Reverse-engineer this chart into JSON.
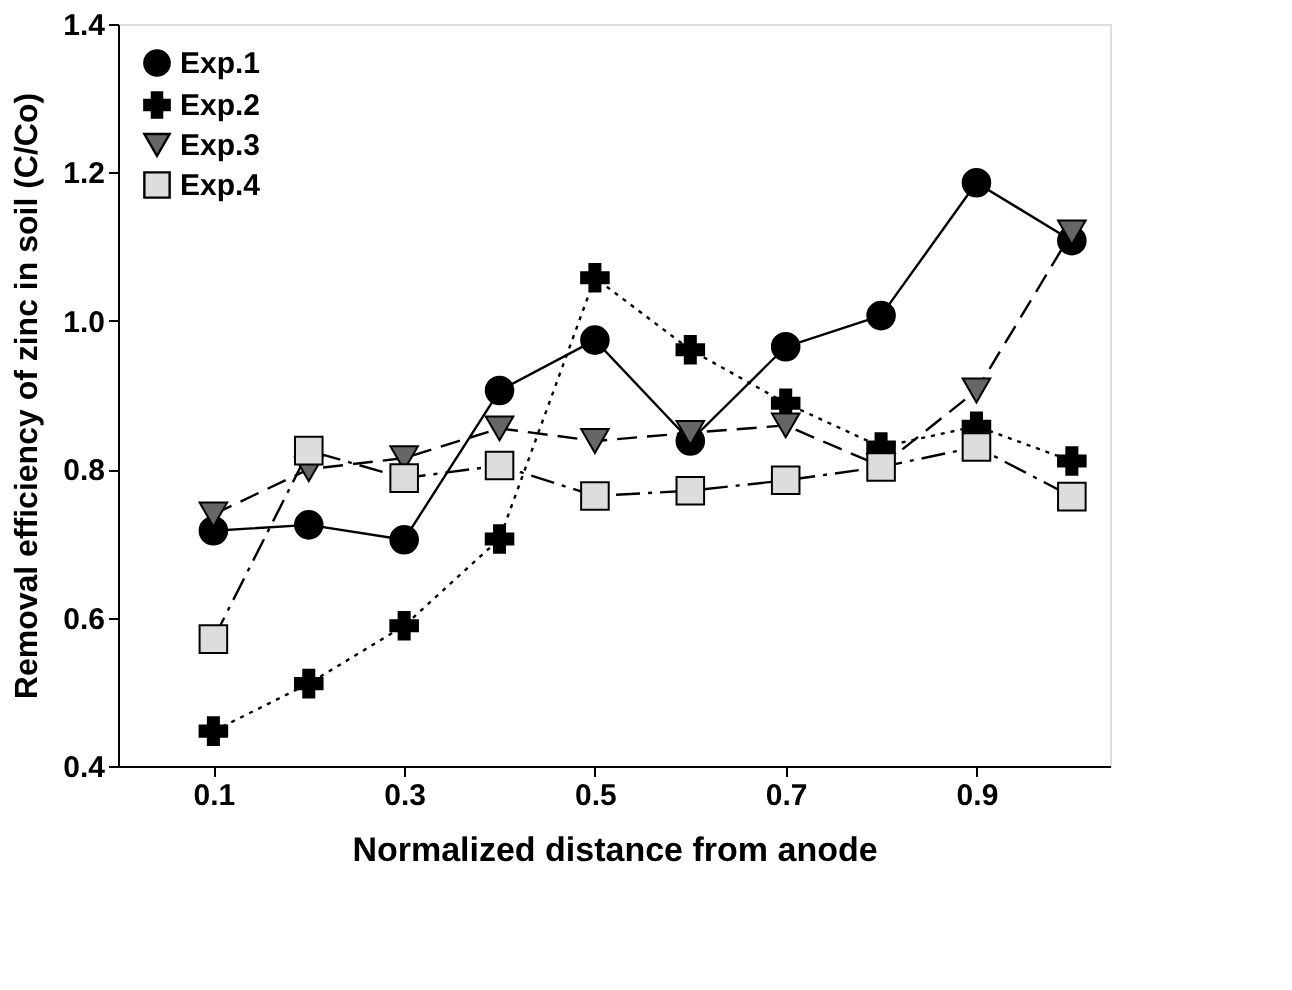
{
  "chart_data": {
    "type": "line",
    "xlabel": "Normalized distance from anode",
    "ylabel": "Removal efficiency of zinc in soil (C/Co)",
    "x": [
      0.1,
      0.2,
      0.3,
      0.4,
      0.5,
      0.6,
      0.7,
      0.8,
      0.9,
      1.0
    ],
    "xlim": [
      0,
      1.04
    ],
    "xticks": [
      0.1,
      0.3,
      0.5,
      0.7,
      0.9
    ],
    "ylim": [
      0.4,
      1.4
    ],
    "yticks": [
      0.4,
      0.6,
      0.8,
      {
        "value": 1.0,
        "label": "1.0"
      },
      1.2,
      1.4
    ],
    "grid": false,
    "legend": "top left",
    "series": [
      {
        "name": "Exp.1",
        "color": "#000000",
        "marker": "circle",
        "line_style": "solid",
        "values": [
          0.717,
          0.725,
          0.705,
          0.906,
          0.974,
          0.838,
          0.965,
          1.007,
          1.186,
          1.108
        ]
      },
      {
        "name": "Exp.2",
        "color": "#000000",
        "marker": "cross",
        "line_style": "dotted",
        "values": [
          0.447,
          0.511,
          0.589,
          0.706,
          1.058,
          0.961,
          0.889,
          0.83,
          0.858,
          0.811
        ]
      },
      {
        "name": "Exp.3",
        "color": "#666666",
        "marker": "triangle",
        "line_style": "dashed",
        "values": [
          0.739,
          0.8,
          0.815,
          0.855,
          0.838,
          0.849,
          0.859,
          0.804,
          0.906,
          1.119
        ]
      },
      {
        "name": "Exp.4",
        "color": "#dddddd",
        "marker": "square",
        "line_style": "dashdot",
        "values": [
          0.571,
          0.825,
          0.788,
          0.805,
          0.764,
          0.771,
          0.785,
          0.803,
          0.83,
          0.763
        ]
      }
    ]
  }
}
